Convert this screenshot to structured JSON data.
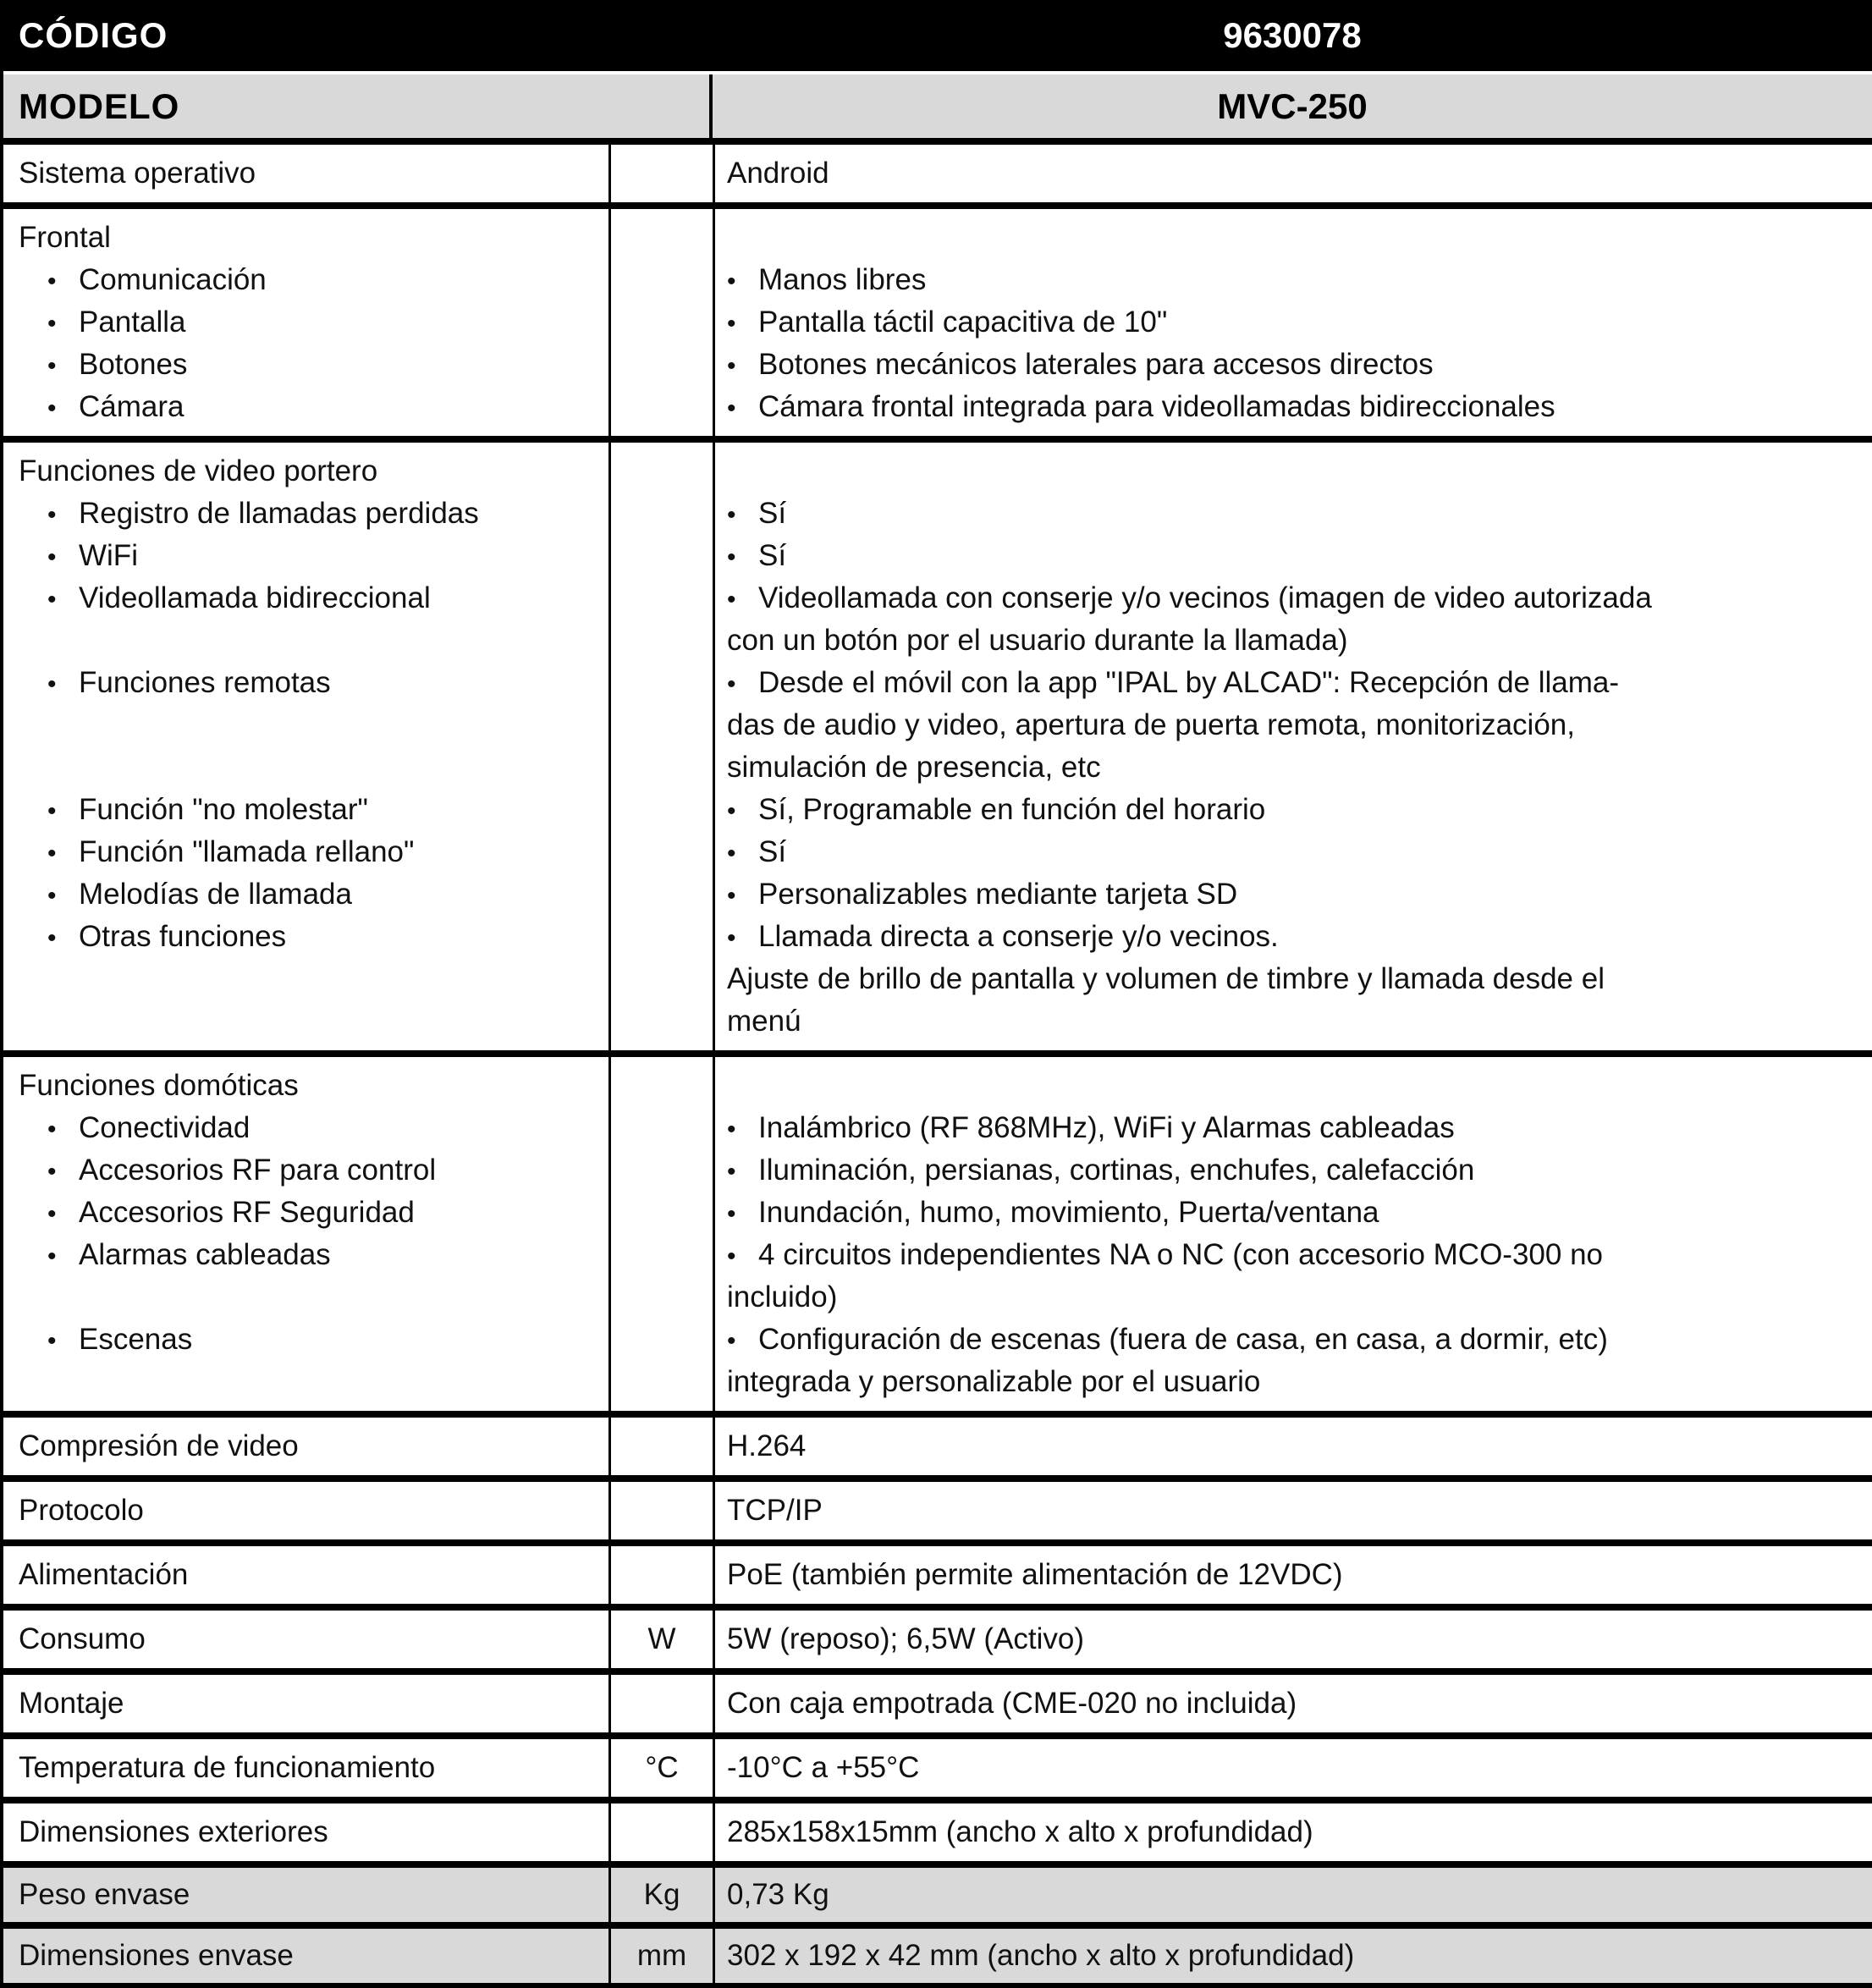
{
  "title_rows": [
    {
      "label": "CÓDIGO",
      "value": "9630078",
      "style": "black"
    },
    {
      "label": "MODELO",
      "value": "MVC-250",
      "style": "gray"
    }
  ],
  "colors": {
    "header_bg": "#000000",
    "header_fg": "#ffffff",
    "subheader_bg": "#d9d9d9",
    "row_gray_bg": "#d9d9d9",
    "border": "#000000",
    "text": "#111111"
  },
  "spec_rows": [
    {
      "name": "sistema-operativo",
      "shade": "white",
      "unit": "",
      "label": [
        {
          "t": "Sistema operativo",
          "b": false
        }
      ],
      "value": [
        {
          "t": "Android",
          "b": false
        }
      ]
    },
    {
      "name": "frontal",
      "shade": "white",
      "unit": "",
      "label": [
        {
          "t": "Frontal",
          "b": false
        },
        {
          "t": "Comunicación",
          "b": true
        },
        {
          "t": "Pantalla",
          "b": true
        },
        {
          "t": "Botones",
          "b": true
        },
        {
          "t": "Cámara",
          "b": true
        }
      ],
      "value": [
        {
          "t": "",
          "b": false
        },
        {
          "t": "Manos libres",
          "b": true
        },
        {
          "t": "Pantalla táctil capacitiva de 10\"",
          "b": true
        },
        {
          "t": "Botones mecánicos laterales para accesos directos",
          "b": true
        },
        {
          "t": "Cámara frontal integrada para videollamadas bidireccionales",
          "b": true
        }
      ]
    },
    {
      "name": "funciones-video-portero",
      "shade": "white",
      "unit": "",
      "label": [
        {
          "t": "Funciones de video portero",
          "b": false
        },
        {
          "t": "Registro de llamadas perdidas",
          "b": true
        },
        {
          "t": "WiFi",
          "b": true
        },
        {
          "t": "Videollamada bidireccional",
          "b": true
        },
        {
          "t": "",
          "b": false
        },
        {
          "t": "Funciones remotas",
          "b": true
        },
        {
          "t": "",
          "b": false
        },
        {
          "t": "",
          "b": false
        },
        {
          "t": "Función \"no molestar\"",
          "b": true
        },
        {
          "t": "Función \"llamada rellano\"",
          "b": true
        },
        {
          "t": "Melodías de llamada",
          "b": true
        },
        {
          "t": "Otras funciones",
          "b": true
        },
        {
          "t": "",
          "b": false
        },
        {
          "t": "",
          "b": false
        }
      ],
      "value": [
        {
          "t": "",
          "b": false
        },
        {
          "t": "Sí",
          "b": true
        },
        {
          "t": "Sí",
          "b": true
        },
        {
          "t": "Videollamada con conserje y/o vecinos (imagen de video autorizada",
          "b": true
        },
        {
          "t": "con un botón por el usuario durante la llamada)",
          "b": false
        },
        {
          "t": "Desde el móvil con la app \"IPAL by ALCAD\":  Recepción de llama-",
          "b": true
        },
        {
          "t": "das de audio y video, apertura de puerta remota, monitorización,",
          "b": false
        },
        {
          "t": "simulación de presencia, etc",
          "b": false
        },
        {
          "t": "Sí, Programable en función del horario",
          "b": true
        },
        {
          "t": "Sí",
          "b": true
        },
        {
          "t": "Personalizables mediante tarjeta SD",
          "b": true
        },
        {
          "t": "Llamada directa a conserje y/o vecinos.",
          "b": true
        },
        {
          "t": "Ajuste de brillo de pantalla y volumen de  timbre y llamada desde el",
          "b": false
        },
        {
          "t": "menú",
          "b": false
        }
      ]
    },
    {
      "name": "funciones-domoticas",
      "shade": "white",
      "unit": "",
      "label": [
        {
          "t": "Funciones domóticas",
          "b": false
        },
        {
          "t": "Conectividad",
          "b": true
        },
        {
          "t": "Accesorios RF para control",
          "b": true
        },
        {
          "t": "Accesorios RF Seguridad",
          "b": true
        },
        {
          "t": "Alarmas cableadas",
          "b": true
        },
        {
          "t": "",
          "b": false
        },
        {
          "t": "Escenas",
          "b": true
        },
        {
          "t": "",
          "b": false
        }
      ],
      "value": [
        {
          "t": "",
          "b": false
        },
        {
          "t": "Inalámbrico (RF 868MHz), WiFi y Alarmas cableadas",
          "b": true
        },
        {
          "t": "Iluminación, persianas, cortinas, enchufes, calefacción",
          "b": true
        },
        {
          "t": "Inundación, humo, movimiento, Puerta/ventana",
          "b": true
        },
        {
          "t": "4 circuitos independientes NA o NC (con accesorio MCO-300 no",
          "b": true
        },
        {
          "t": "incluido)",
          "b": false
        },
        {
          "t": "Configuración de escenas (fuera de casa, en casa, a dormir, etc)",
          "b": true
        },
        {
          "t": "integrada y personalizable por el usuario",
          "b": false
        }
      ]
    },
    {
      "name": "compresion-video",
      "shade": "white",
      "unit": "",
      "label": [
        {
          "t": "Compresión de video",
          "b": false
        }
      ],
      "value": [
        {
          "t": "H.264",
          "b": false
        }
      ]
    },
    {
      "name": "protocolo",
      "shade": "white",
      "unit": "",
      "label": [
        {
          "t": "Protocolo",
          "b": false
        }
      ],
      "value": [
        {
          "t": "TCP/IP",
          "b": false
        }
      ]
    },
    {
      "name": "alimentacion",
      "shade": "white",
      "unit": "",
      "label": [
        {
          "t": "Alimentación",
          "b": false
        }
      ],
      "value": [
        {
          "t": "PoE (también permite alimentación de 12VDC)",
          "b": false
        }
      ]
    },
    {
      "name": "consumo",
      "shade": "white",
      "unit": "W",
      "label": [
        {
          "t": "Consumo",
          "b": false
        }
      ],
      "value": [
        {
          "t": "5W (reposo); 6,5W (Activo)",
          "b": false
        }
      ]
    },
    {
      "name": "montaje",
      "shade": "white",
      "unit": "",
      "label": [
        {
          "t": "Montaje",
          "b": false
        }
      ],
      "value": [
        {
          "t": "Con caja empotrada (CME-020 no incluida)",
          "b": false
        }
      ]
    },
    {
      "name": "temperatura-funcionamiento",
      "shade": "white",
      "unit": "°C",
      "label": [
        {
          "t": "Temperatura de funcionamiento",
          "b": false
        }
      ],
      "value": [
        {
          "t": "-10°C a +55°C",
          "b": false
        }
      ]
    },
    {
      "name": "dimensiones-exteriores",
      "shade": "white",
      "unit": "",
      "label": [
        {
          "t": "Dimensiones exteriores",
          "b": false
        }
      ],
      "value": [
        {
          "t": "285x158x15mm (ancho x alto x profundidad)",
          "b": false
        }
      ]
    },
    {
      "name": "peso-envase",
      "shade": "gray",
      "unit": "Kg",
      "label": [
        {
          "t": "Peso envase",
          "b": false
        }
      ],
      "value": [
        {
          "t": "0,73 Kg",
          "b": false
        }
      ]
    },
    {
      "name": "dimensiones-envase",
      "shade": "gray",
      "unit": "mm",
      "label": [
        {
          "t": "Dimensiones envase",
          "b": false
        }
      ],
      "value": [
        {
          "t": "302 x 192 x 42 mm (ancho x alto x profundidad)",
          "b": false
        }
      ]
    }
  ]
}
